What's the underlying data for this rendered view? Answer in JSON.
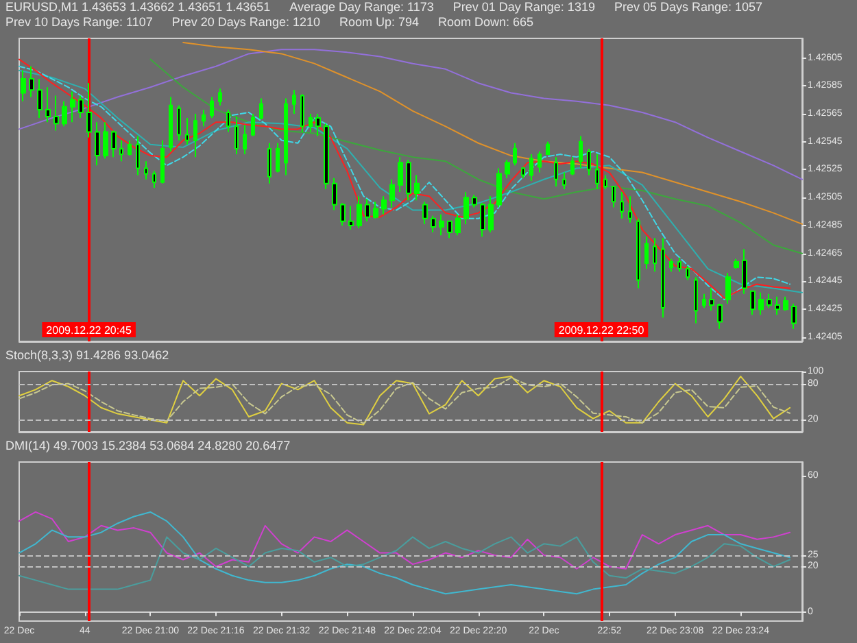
{
  "chart_data": [
    {
      "type": "candlestick",
      "title": "EURUSD,M1 1.43653 1.43662 1.43651 1.43651",
      "annotations": [
        "Average Day Range: 1173",
        "Prev 01 Day Range: 1319",
        "Prev 05 Days Range: 1057",
        "Prev 10 Days Range: 1107",
        "Prev 20 Days Range: 1210",
        "Room Up: 794",
        "Room Down: 665"
      ],
      "x": [
        "2009-12-22T20:29",
        "2009-12-22T20:31",
        "2009-12-22T20:33",
        "2009-12-22T20:35",
        "2009-12-22T20:37",
        "2009-12-22T20:39",
        "2009-12-22T20:41",
        "2009-12-22T20:43",
        "2009-12-22T20:45",
        "2009-12-22T20:47",
        "2009-12-22T20:49",
        "2009-12-22T20:51",
        "2009-12-22T20:53",
        "2009-12-22T20:55",
        "2009-12-22T20:57",
        "2009-12-22T20:59",
        "2009-12-22T21:01",
        "2009-12-22T21:03",
        "2009-12-22T21:05",
        "2009-12-22T21:07",
        "2009-12-22T21:09",
        "2009-12-22T21:11",
        "2009-12-22T21:13",
        "2009-12-22T21:15",
        "2009-12-22T21:17",
        "2009-12-22T21:19",
        "2009-12-22T21:21",
        "2009-12-22T21:23",
        "2009-12-22T21:25",
        "2009-12-22T21:27",
        "2009-12-22T21:29",
        "2009-12-22T21:31",
        "2009-12-22T21:33",
        "2009-12-22T21:35",
        "2009-12-22T21:37",
        "2009-12-22T21:39",
        "2009-12-22T21:41",
        "2009-12-22T21:43",
        "2009-12-22T21:45",
        "2009-12-22T21:47",
        "2009-12-22T21:49",
        "2009-12-22T21:51",
        "2009-12-22T21:53",
        "2009-12-22T21:55",
        "2009-12-22T21:57",
        "2009-12-22T21:59",
        "2009-12-22T22:01",
        "2009-12-22T22:03",
        "2009-12-22T22:05",
        "2009-12-22T22:07",
        "2009-12-22T22:09",
        "2009-12-22T22:11",
        "2009-12-22T22:13",
        "2009-12-22T22:15",
        "2009-12-22T22:17",
        "2009-12-22T22:19",
        "2009-12-22T22:21",
        "2009-12-22T22:23",
        "2009-12-22T22:25",
        "2009-12-22T22:27",
        "2009-12-22T22:29",
        "2009-12-22T22:31",
        "2009-12-22T22:33",
        "2009-12-22T22:35",
        "2009-12-22T22:37",
        "2009-12-22T22:39",
        "2009-12-22T22:41",
        "2009-12-22T22:43",
        "2009-12-22T22:45",
        "2009-12-22T22:47",
        "2009-12-22T22:49",
        "2009-12-22T22:51",
        "2009-12-22T22:53",
        "2009-12-22T22:55",
        "2009-12-22T22:57",
        "2009-12-22T22:59",
        "2009-12-22T23:01",
        "2009-12-22T23:03",
        "2009-12-22T23:05",
        "2009-12-22T23:07",
        "2009-12-22T23:09",
        "2009-12-22T23:11",
        "2009-12-22T23:13",
        "2009-12-22T23:15",
        "2009-12-22T23:17",
        "2009-12-22T23:19",
        "2009-12-22T23:21",
        "2009-12-22T23:23",
        "2009-12-22T23:25",
        "2009-12-22T23:27",
        "2009-12-22T23:29",
        "2009-12-22T23:31",
        "2009-12-22T23:33",
        "2009-12-22T23:35",
        "2009-12-22T23:37"
      ],
      "ohlc": [
        [
          1.4258,
          1.42596,
          1.42574,
          1.4259
        ],
        [
          1.4259,
          1.42599,
          1.42577,
          1.42582
        ],
        [
          1.42582,
          1.4259,
          1.42562,
          1.42568
        ],
        [
          1.42568,
          1.42584,
          1.42559,
          1.42563
        ],
        [
          1.42563,
          1.42578,
          1.42553,
          1.42558
        ],
        [
          1.42558,
          1.42574,
          1.42556,
          1.4257
        ],
        [
          1.4257,
          1.42581,
          1.42559,
          1.42575
        ],
        [
          1.42575,
          1.42578,
          1.42562,
          1.42566
        ],
        [
          1.42566,
          1.42587,
          1.42548,
          1.42552
        ],
        [
          1.42552,
          1.42559,
          1.42528,
          1.42535
        ],
        [
          1.42535,
          1.42559,
          1.42533,
          1.42552
        ],
        [
          1.42552,
          1.42553,
          1.42534,
          1.4254
        ],
        [
          1.4254,
          1.42546,
          1.42531,
          1.42536
        ],
        [
          1.42536,
          1.42546,
          1.42535,
          1.42543
        ],
        [
          1.42543,
          1.42549,
          1.42521,
          1.42526
        ],
        [
          1.42526,
          1.42531,
          1.42518,
          1.42522
        ],
        [
          1.42522,
          1.42524,
          1.42512,
          1.42516
        ],
        [
          1.42516,
          1.42546,
          1.42515,
          1.4254
        ],
        [
          1.42541,
          1.42577,
          1.42538,
          1.42571
        ],
        [
          1.42569,
          1.42571,
          1.42546,
          1.4255
        ],
        [
          1.4255,
          1.42562,
          1.42543,
          1.42546
        ],
        [
          1.42546,
          1.42565,
          1.42534,
          1.4256
        ],
        [
          1.4256,
          1.42568,
          1.42556,
          1.42564
        ],
        [
          1.42564,
          1.42577,
          1.42562,
          1.42574
        ],
        [
          1.42574,
          1.42583,
          1.42571,
          1.4258
        ],
        [
          1.42566,
          1.42568,
          1.42552,
          1.42556
        ],
        [
          1.42556,
          1.42563,
          1.42536,
          1.4254
        ],
        [
          1.4254,
          1.42557,
          1.42536,
          1.4255
        ],
        [
          1.4255,
          1.42565,
          1.42549,
          1.42562
        ],
        [
          1.42562,
          1.42576,
          1.42561,
          1.42572
        ],
        [
          1.4254,
          1.42544,
          1.42515,
          1.4252
        ],
        [
          1.42524,
          1.42544,
          1.42523,
          1.4254
        ],
        [
          1.4253,
          1.42576,
          1.42521,
          1.42572
        ],
        [
          1.42572,
          1.42582,
          1.42565,
          1.42578
        ],
        [
          1.42578,
          1.42579,
          1.42552,
          1.42556
        ],
        [
          1.42556,
          1.42565,
          1.42552,
          1.42562
        ],
        [
          1.42562,
          1.42565,
          1.42549,
          1.42556
        ],
        [
          1.42556,
          1.42558,
          1.42511,
          1.42515
        ],
        [
          1.42515,
          1.42519,
          1.42496,
          1.425
        ],
        [
          1.425,
          1.42501,
          1.42485,
          1.42488
        ],
        [
          1.42488,
          1.42499,
          1.42482,
          1.42485
        ],
        [
          1.42485,
          1.42506,
          1.42483,
          1.425
        ],
        [
          1.425,
          1.42504,
          1.42488,
          1.42491
        ],
        [
          1.42491,
          1.42502,
          1.4249,
          1.42497
        ],
        [
          1.42497,
          1.42506,
          1.42493,
          1.42503
        ],
        [
          1.42503,
          1.42518,
          1.42498,
          1.42514
        ],
        [
          1.42514,
          1.42534,
          1.42509,
          1.4253
        ],
        [
          1.4253,
          1.42532,
          1.42503,
          1.42508
        ],
        [
          1.42508,
          1.42521,
          1.42503,
          1.42515
        ],
        [
          1.425,
          1.42502,
          1.42486,
          1.4249
        ],
        [
          1.4249,
          1.42492,
          1.4248,
          1.42484
        ],
        [
          1.42484,
          1.42493,
          1.42478,
          1.42488
        ],
        [
          1.42488,
          1.42488,
          1.42476,
          1.4248
        ],
        [
          1.4248,
          1.42493,
          1.42478,
          1.4249
        ],
        [
          1.4249,
          1.42509,
          1.42486,
          1.42505
        ],
        [
          1.42505,
          1.42507,
          1.42498,
          1.425
        ],
        [
          1.425,
          1.42501,
          1.42477,
          1.42482
        ],
        [
          1.42482,
          1.42506,
          1.4248,
          1.425
        ],
        [
          1.425,
          1.42526,
          1.42498,
          1.42522
        ],
        [
          1.42522,
          1.42532,
          1.42519,
          1.4253
        ],
        [
          1.4253,
          1.42544,
          1.42528,
          1.4254
        ],
        [
          1.42526,
          1.42527,
          1.42519,
          1.42521
        ],
        [
          1.42521,
          1.42536,
          1.42517,
          1.42533
        ],
        [
          1.42527,
          1.42538,
          1.42523,
          1.42536
        ],
        [
          1.42536,
          1.42545,
          1.42536,
          1.42543
        ],
        [
          1.4253,
          1.42534,
          1.42513,
          1.42518
        ],
        [
          1.42518,
          1.42523,
          1.42511,
          1.42514
        ],
        [
          1.42522,
          1.42534,
          1.42521,
          1.42531
        ],
        [
          1.42531,
          1.42549,
          1.42526,
          1.42545
        ],
        [
          1.42538,
          1.4254,
          1.42521,
          1.42525
        ],
        [
          1.42525,
          1.42536,
          1.42511,
          1.42515
        ],
        [
          1.42518,
          1.42521,
          1.42511,
          1.42513
        ],
        [
          1.42513,
          1.42513,
          1.42498,
          1.42502
        ],
        [
          1.42502,
          1.42509,
          1.4249,
          1.42495
        ],
        [
          1.42495,
          1.42506,
          1.42487,
          1.4249
        ],
        [
          1.42488,
          1.4249,
          1.4244,
          1.42446
        ],
        [
          1.42458,
          1.42477,
          1.42454,
          1.42472
        ],
        [
          1.4247,
          1.42476,
          1.42452,
          1.42458
        ],
        [
          1.42468,
          1.42476,
          1.42419,
          1.42426
        ],
        [
          1.42455,
          1.42461,
          1.42452,
          1.42459
        ],
        [
          1.42459,
          1.42462,
          1.42452,
          1.42454
        ],
        [
          1.42454,
          1.42456,
          1.42446,
          1.42448
        ],
        [
          1.42446,
          1.42448,
          1.42415,
          1.42424
        ],
        [
          1.42428,
          1.42436,
          1.42426,
          1.42432
        ],
        [
          1.42432,
          1.4244,
          1.42424,
          1.42428
        ],
        [
          1.42428,
          1.42429,
          1.42411,
          1.42416
        ],
        [
          1.42432,
          1.42451,
          1.42429,
          1.42448
        ],
        [
          1.42455,
          1.42461,
          1.42454,
          1.42459
        ],
        [
          1.4246,
          1.42468,
          1.42436,
          1.4244
        ],
        [
          1.42438,
          1.42438,
          1.42421,
          1.42425
        ],
        [
          1.42425,
          1.42437,
          1.42421,
          1.42432
        ],
        [
          1.42432,
          1.42436,
          1.42426,
          1.42428
        ],
        [
          1.42428,
          1.42434,
          1.42421,
          1.42425
        ],
        [
          1.42425,
          1.42434,
          1.42424,
          1.42431
        ],
        [
          1.42427,
          1.42429,
          1.42411,
          1.42415
        ]
      ],
      "color": "#00ff00",
      "series": [
        {
          "type": "line",
          "color": "#9370db",
          "x": [
            "2009-12-22T20:28",
            "2009-12-22T20:36",
            "2009-12-22T20:44",
            "2009-12-22T20:52",
            "2009-12-22T21:00",
            "2009-12-22T21:08",
            "2009-12-22T21:16",
            "2009-12-22T21:24",
            "2009-12-22T21:32",
            "2009-12-22T21:40",
            "2009-12-22T21:48",
            "2009-12-22T21:56",
            "2009-12-22T22:04",
            "2009-12-22T22:12",
            "2009-12-22T22:20",
            "2009-12-22T22:28",
            "2009-12-22T22:36",
            "2009-12-22T22:44",
            "2009-12-22T22:52",
            "2009-12-22T23:00",
            "2009-12-22T23:08",
            "2009-12-22T23:16",
            "2009-12-22T23:24",
            "2009-12-22T23:32",
            "2009-12-22T23:39"
          ],
          "values": [
            1.42554,
            1.42562,
            1.42569,
            1.42577,
            1.42584,
            1.42592,
            1.42599,
            1.42608,
            1.42611,
            1.42611,
            1.42609,
            1.42606,
            1.42601,
            1.42597,
            1.42587,
            1.4258,
            1.42576,
            1.42574,
            1.42571,
            1.42566,
            1.42559,
            1.42548,
            1.42538,
            1.42528,
            1.42518
          ]
        },
        {
          "type": "line",
          "color": "#e0922a",
          "x": [
            "2009-12-22T21:08",
            "2009-12-22T21:16",
            "2009-12-22T21:24",
            "2009-12-22T21:32",
            "2009-12-22T21:40",
            "2009-12-22T21:48",
            "2009-12-22T21:56",
            "2009-12-22T22:04",
            "2009-12-22T22:12",
            "2009-12-22T22:20",
            "2009-12-22T22:28",
            "2009-12-22T22:36",
            "2009-12-22T22:44",
            "2009-12-22T22:52",
            "2009-12-22T23:00",
            "2009-12-22T23:08",
            "2009-12-22T23:16",
            "2009-12-22T23:24",
            "2009-12-22T23:32",
            "2009-12-22T23:39"
          ],
          "values": [
            1.42616,
            1.42613,
            1.42611,
            1.42608,
            1.42601,
            1.42591,
            1.42581,
            1.42567,
            1.42556,
            1.42544,
            1.42535,
            1.42531,
            1.42529,
            1.42526,
            1.42523,
            1.42516,
            1.42509,
            1.42502,
            1.42494,
            1.42486
          ]
        },
        {
          "type": "line",
          "color": "#3ca83c",
          "x": [
            "2009-12-22T21:00",
            "2009-12-22T21:08",
            "2009-12-22T21:16",
            "2009-12-22T21:24",
            "2009-12-22T21:32",
            "2009-12-22T21:40",
            "2009-12-22T21:48",
            "2009-12-22T21:56",
            "2009-12-22T22:04",
            "2009-12-22T22:12",
            "2009-12-22T22:20",
            "2009-12-22T22:28",
            "2009-12-22T22:36",
            "2009-12-22T22:44",
            "2009-12-22T22:52",
            "2009-12-22T23:00",
            "2009-12-22T23:08",
            "2009-12-22T23:16",
            "2009-12-22T23:24",
            "2009-12-22T23:32",
            "2009-12-22T23:39"
          ],
          "values": [
            1.42604,
            1.42584,
            1.42568,
            1.42559,
            1.42553,
            1.42551,
            1.42545,
            1.42539,
            1.42534,
            1.42531,
            1.42518,
            1.42509,
            1.42504,
            1.42509,
            1.42513,
            1.4251,
            1.42504,
            1.42499,
            1.42487,
            1.42471,
            1.42465
          ]
        },
        {
          "type": "line",
          "color": "#2eb0b0",
          "x": [
            "2009-12-22T20:28",
            "2009-12-22T20:36",
            "2009-12-22T20:44",
            "2009-12-22T20:52",
            "2009-12-22T21:00",
            "2009-12-22T21:08",
            "2009-12-22T21:16",
            "2009-12-22T21:24",
            "2009-12-22T21:32",
            "2009-12-22T21:40",
            "2009-12-22T21:48",
            "2009-12-22T21:56",
            "2009-12-22T22:04",
            "2009-12-22T22:12",
            "2009-12-22T22:20",
            "2009-12-22T22:28",
            "2009-12-22T22:36",
            "2009-12-22T22:44",
            "2009-12-22T22:52",
            "2009-12-22T23:00",
            "2009-12-22T23:08",
            "2009-12-22T23:16",
            "2009-12-22T23:24",
            "2009-12-22T23:32",
            "2009-12-22T23:39"
          ],
          "values": [
            1.42596,
            1.42591,
            1.42583,
            1.42562,
            1.42543,
            1.42541,
            1.42553,
            1.42559,
            1.42558,
            1.42555,
            1.4254,
            1.42512,
            1.42496,
            1.42496,
            1.42501,
            1.42509,
            1.42518,
            1.42526,
            1.42528,
            1.42514,
            1.42484,
            1.42454,
            1.42443,
            1.4244,
            1.42437
          ]
        },
        {
          "type": "line",
          "color": "#40d8e8",
          "line_style": "dashed",
          "x": [
            "2009-12-22T20:28",
            "2009-12-22T20:32",
            "2009-12-22T20:36",
            "2009-12-22T20:40",
            "2009-12-22T20:44",
            "2009-12-22T20:48",
            "2009-12-22T20:52",
            "2009-12-22T20:56",
            "2009-12-22T21:00",
            "2009-12-22T21:04",
            "2009-12-22T21:08",
            "2009-12-22T21:12",
            "2009-12-22T21:16",
            "2009-12-22T21:20",
            "2009-12-22T21:24",
            "2009-12-22T21:28",
            "2009-12-22T21:32",
            "2009-12-22T21:36",
            "2009-12-22T21:40",
            "2009-12-22T21:44",
            "2009-12-22T21:48",
            "2009-12-22T21:52",
            "2009-12-22T21:56",
            "2009-12-22T22:00",
            "2009-12-22T22:04",
            "2009-12-22T22:08",
            "2009-12-22T22:12",
            "2009-12-22T22:16",
            "2009-12-22T22:20",
            "2009-12-22T22:24",
            "2009-12-22T22:28",
            "2009-12-22T22:32",
            "2009-12-22T22:36",
            "2009-12-22T22:40",
            "2009-12-22T22:44",
            "2009-12-22T22:48",
            "2009-12-22T22:52",
            "2009-12-22T22:56",
            "2009-12-22T23:00",
            "2009-12-22T23:04",
            "2009-12-22T23:08",
            "2009-12-22T23:12",
            "2009-12-22T23:16",
            "2009-12-22T23:20",
            "2009-12-22T23:24",
            "2009-12-22T23:28",
            "2009-12-22T23:32",
            "2009-12-22T23:36"
          ],
          "values": [
            1.42599,
            1.42596,
            1.4259,
            1.42584,
            1.42576,
            1.4257,
            1.42559,
            1.42548,
            1.42537,
            1.42528,
            1.42534,
            1.42542,
            1.42553,
            1.42564,
            1.42566,
            1.42558,
            1.42546,
            1.42544,
            1.42562,
            1.42556,
            1.42531,
            1.42506,
            1.42498,
            1.42496,
            1.42503,
            1.42516,
            1.42503,
            1.4249,
            1.4249,
            1.42494,
            1.42511,
            1.42523,
            1.42534,
            1.42536,
            1.42534,
            1.42538,
            1.42534,
            1.42521,
            1.42503,
            1.42483,
            1.42465,
            1.42454,
            1.42442,
            1.42432,
            1.4244,
            1.42448,
            1.42447,
            1.42443
          ]
        },
        {
          "type": "line",
          "color": "#ff2020",
          "x": [
            "2009-12-22T20:28",
            "2009-12-22T20:32",
            "2009-12-22T20:36",
            "2009-12-22T20:40",
            "2009-12-22T20:44",
            "2009-12-22T20:48",
            "2009-12-22T20:52",
            "2009-12-22T20:56",
            "2009-12-22T21:00",
            "2009-12-22T21:04",
            "2009-12-22T21:08",
            "2009-12-22T21:12",
            "2009-12-22T21:16",
            "2009-12-22T21:20",
            "2009-12-22T21:24",
            "2009-12-22T21:28",
            "2009-12-22T21:32",
            "2009-12-22T21:36",
            "2009-12-22T21:40",
            "2009-12-22T21:44",
            "2009-12-22T21:48",
            "2009-12-22T21:52",
            "2009-12-22T21:56",
            "2009-12-22T22:00",
            "2009-12-22T22:04",
            "2009-12-22T22:08",
            "2009-12-22T22:12",
            "2009-12-22T22:16",
            "2009-12-22T22:20",
            "2009-12-22T22:24",
            "2009-12-22T22:28",
            "2009-12-22T22:32",
            "2009-12-22T22:36",
            "2009-12-22T22:40",
            "2009-12-22T22:44",
            "2009-12-22T22:48",
            "2009-12-22T22:52",
            "2009-12-22T22:56",
            "2009-12-22T23:00",
            "2009-12-22T23:04",
            "2009-12-22T23:08",
            "2009-12-22T23:12",
            "2009-12-22T23:16",
            "2009-12-22T23:20",
            "2009-12-22T23:24",
            "2009-12-22T23:28",
            "2009-12-22T23:32",
            "2009-12-22T23:36"
          ],
          "values": [
            1.42604,
            1.42596,
            1.42587,
            1.42579,
            1.42571,
            1.42562,
            1.42549,
            1.42541,
            1.42535,
            1.42534,
            1.42546,
            1.42551,
            1.42559,
            1.42559,
            1.42557,
            1.42556,
            1.42554,
            1.42554,
            1.42559,
            1.42548,
            1.42524,
            1.42492,
            1.42491,
            1.42498,
            1.42508,
            1.42506,
            1.42494,
            1.42491,
            1.42494,
            1.42501,
            1.42517,
            1.4253,
            1.42531,
            1.42529,
            1.42531,
            1.42529,
            1.42523,
            1.42506,
            1.42482,
            1.42469,
            1.42456,
            1.42454,
            1.42444,
            1.42433,
            1.42439,
            1.42443,
            1.42441,
            1.4244
          ]
        }
      ],
      "xlim": [
        "2009-12-22T20:28",
        "2009-12-22T23:39"
      ],
      "ylim": [
        1.42402,
        1.42619
      ],
      "yticks": [
        1.42405,
        1.42425,
        1.42445,
        1.42465,
        1.42485,
        1.42505,
        1.42525,
        1.42545,
        1.42565,
        1.42585,
        1.42605
      ],
      "ref_lines": [
        {
          "axis": "x",
          "value": "2009-12-22T20:45",
          "label": "2009.12.22 20:45",
          "color": "#ff0000"
        },
        {
          "axis": "x",
          "value": "2009-12-22T22:50",
          "label": "2009.12.22 22:50",
          "color": "#ff0000"
        }
      ],
      "tick_labels": "y"
    },
    {
      "type": "line",
      "title": "Stoch(8,3,3) 91.4286 93.0462",
      "x": [
        "2009-12-22T20:28",
        "2009-12-22T20:32",
        "2009-12-22T20:36",
        "2009-12-22T20:40",
        "2009-12-22T20:44",
        "2009-12-22T20:48",
        "2009-12-22T20:52",
        "2009-12-22T20:56",
        "2009-12-22T21:00",
        "2009-12-22T21:04",
        "2009-12-22T21:08",
        "2009-12-22T21:12",
        "2009-12-22T21:16",
        "2009-12-22T21:20",
        "2009-12-22T21:24",
        "2009-12-22T21:28",
        "2009-12-22T21:32",
        "2009-12-22T21:36",
        "2009-12-22T21:40",
        "2009-12-22T21:44",
        "2009-12-22T21:48",
        "2009-12-22T21:52",
        "2009-12-22T21:56",
        "2009-12-22T22:00",
        "2009-12-22T22:04",
        "2009-12-22T22:08",
        "2009-12-22T22:12",
        "2009-12-22T22:16",
        "2009-12-22T22:20",
        "2009-12-22T22:24",
        "2009-12-22T22:28",
        "2009-12-22T22:32",
        "2009-12-22T22:36",
        "2009-12-22T22:40",
        "2009-12-22T22:44",
        "2009-12-22T22:48",
        "2009-12-22T22:52",
        "2009-12-22T22:56",
        "2009-12-22T23:00",
        "2009-12-22T23:04",
        "2009-12-22T23:08",
        "2009-12-22T23:12",
        "2009-12-22T23:16",
        "2009-12-22T23:20",
        "2009-12-22T23:24",
        "2009-12-22T23:28",
        "2009-12-22T23:32",
        "2009-12-22T23:36"
      ],
      "series": [
        {
          "color": "#e0d040",
          "values": [
            60,
            70,
            85,
            75,
            60,
            40,
            30,
            25,
            20,
            15,
            85,
            60,
            88,
            70,
            25,
            35,
            80,
            70,
            85,
            40,
            15,
            12,
            60,
            85,
            80,
            30,
            45,
            85,
            60,
            88,
            92,
            65,
            85,
            75,
            40,
            22,
            35,
            15,
            15,
            50,
            80,
            60,
            25,
            55,
            92,
            60,
            22,
            40
          ]
        },
        {
          "color": "#c8c890",
          "line_style": "dashed",
          "values": [
            55,
            65,
            78,
            80,
            68,
            50,
            35,
            28,
            22,
            18,
            50,
            72,
            74,
            79,
            48,
            30,
            58,
            75,
            78,
            62,
            28,
            14,
            36,
            72,
            82,
            55,
            38,
            65,
            72,
            74,
            90,
            78,
            75,
            80,
            58,
            31,
            28,
            25,
            15,
            32,
            65,
            70,
            42,
            40,
            74,
            76,
            41,
            31
          ]
        }
      ],
      "xlim": [
        "2009-12-22T20:28",
        "2009-12-22T23:39"
      ],
      "ylim": [
        0,
        100
      ],
      "yticks": [
        20,
        80,
        100
      ],
      "ref_lines": [
        {
          "axis": "x",
          "value": "2009-12-22T20:45",
          "color": "#ff0000"
        },
        {
          "axis": "x",
          "value": "2009-12-22T22:50",
          "color": "#ff0000"
        },
        {
          "axis": "y",
          "value": 80,
          "color": "#c0c0c0",
          "line_style": "dashed"
        },
        {
          "axis": "y",
          "value": 20,
          "color": "#c0c0c0",
          "line_style": "dashed"
        }
      ],
      "tick_labels": "y"
    },
    {
      "type": "line",
      "title": "DMI(14) 49.7003 15.2384 53.0684 24.8280 20.6477",
      "x": [
        "2009-12-22T20:28",
        "2009-12-22T20:32",
        "2009-12-22T20:36",
        "2009-12-22T20:40",
        "2009-12-22T20:44",
        "2009-12-22T20:48",
        "2009-12-22T20:52",
        "2009-12-22T20:56",
        "2009-12-22T21:00",
        "2009-12-22T21:04",
        "2009-12-22T21:08",
        "2009-12-22T21:12",
        "2009-12-22T21:16",
        "2009-12-22T21:20",
        "2009-12-22T21:24",
        "2009-12-22T21:28",
        "2009-12-22T21:32",
        "2009-12-22T21:36",
        "2009-12-22T21:40",
        "2009-12-22T21:44",
        "2009-12-22T21:48",
        "2009-12-22T21:52",
        "2009-12-22T21:56",
        "2009-12-22T22:00",
        "2009-12-22T22:04",
        "2009-12-22T22:08",
        "2009-12-22T22:12",
        "2009-12-22T22:16",
        "2009-12-22T22:20",
        "2009-12-22T22:24",
        "2009-12-22T22:28",
        "2009-12-22T22:32",
        "2009-12-22T22:36",
        "2009-12-22T22:40",
        "2009-12-22T22:44",
        "2009-12-22T22:48",
        "2009-12-22T22:52",
        "2009-12-22T22:56",
        "2009-12-22T23:00",
        "2009-12-22T23:04",
        "2009-12-22T23:08",
        "2009-12-22T23:12",
        "2009-12-22T23:16",
        "2009-12-22T23:20",
        "2009-12-22T23:24",
        "2009-12-22T23:28",
        "2009-12-22T23:32",
        "2009-12-22T23:36"
      ],
      "series": [
        {
          "color": "#d040d0",
          "values": [
            40,
            44,
            41,
            31,
            33,
            38,
            36,
            37,
            35,
            26,
            23,
            26,
            20,
            23,
            22,
            38,
            30,
            26,
            33,
            31,
            36,
            31,
            26,
            26,
            21,
            23,
            26,
            24,
            27,
            25,
            24,
            32,
            25,
            24,
            19,
            24,
            20,
            19,
            34,
            30,
            34,
            36,
            38,
            34,
            34,
            32,
            33,
            35
          ]
        },
        {
          "color": "#40b8d0",
          "values": [
            26,
            30,
            36,
            33,
            33,
            35,
            39,
            42,
            44,
            40,
            33,
            23,
            19,
            16,
            14,
            13,
            13,
            14,
            16,
            19,
            21,
            20,
            17,
            15,
            12,
            10,
            8,
            9,
            10,
            11,
            12,
            11,
            10,
            9,
            8,
            10,
            11,
            12,
            17,
            21,
            24,
            31,
            34,
            34,
            30,
            28,
            26,
            24
          ]
        },
        {
          "color": "#4a9e9e",
          "values": [
            16,
            14,
            12,
            10,
            10,
            10,
            10,
            12,
            14,
            33,
            26,
            23,
            28,
            24,
            20,
            26,
            28,
            27,
            22,
            24,
            20,
            21,
            24,
            27,
            33,
            28,
            31,
            28,
            26,
            30,
            33,
            26,
            30,
            29,
            33,
            22,
            16,
            15,
            19,
            18,
            17,
            20,
            24,
            30,
            29,
            24,
            20,
            23
          ]
        }
      ],
      "xlim": [
        "2009-12-22T20:28",
        "2009-12-22T23:39"
      ],
      "ylim": [
        -4,
        66
      ],
      "yticks": [
        0,
        20,
        25,
        60
      ],
      "xticks": [
        {
          "value": "2009-12-22T20:28",
          "label": "22 Dec"
        },
        {
          "value": "2009-12-22T20:44",
          "label": "44"
        },
        {
          "value": "2009-12-22T21:00",
          "label": "22 Dec 21:00"
        },
        {
          "value": "2009-12-22T21:16",
          "label": "22 Dec 21:16"
        },
        {
          "value": "2009-12-22T21:32",
          "label": "22 Dec 21:32"
        },
        {
          "value": "2009-12-22T21:48",
          "label": "22 Dec 21:48"
        },
        {
          "value": "2009-12-22T22:04",
          "label": "22 Dec 22:04"
        },
        {
          "value": "2009-12-22T22:20",
          "label": "22 Dec 22:20"
        },
        {
          "value": "2009-12-22T22:36",
          "label": "22 Dec"
        },
        {
          "value": "2009-12-22T22:52",
          "label": "22:52"
        },
        {
          "value": "2009-12-22T23:08",
          "label": "22 Dec 23:08"
        },
        {
          "value": "2009-12-22T23:24",
          "label": "22 Dec 23:24"
        }
      ],
      "ref_lines": [
        {
          "axis": "x",
          "value": "2009-12-22T20:45",
          "color": "#ff0000"
        },
        {
          "axis": "x",
          "value": "2009-12-22T22:50",
          "color": "#ff0000"
        },
        {
          "axis": "y",
          "value": 25,
          "color": "#c0c0c0",
          "line_style": "dashed"
        },
        {
          "axis": "y",
          "value": 20,
          "color": "#c0c0c0",
          "line_style": "dashed"
        }
      ]
    }
  ]
}
